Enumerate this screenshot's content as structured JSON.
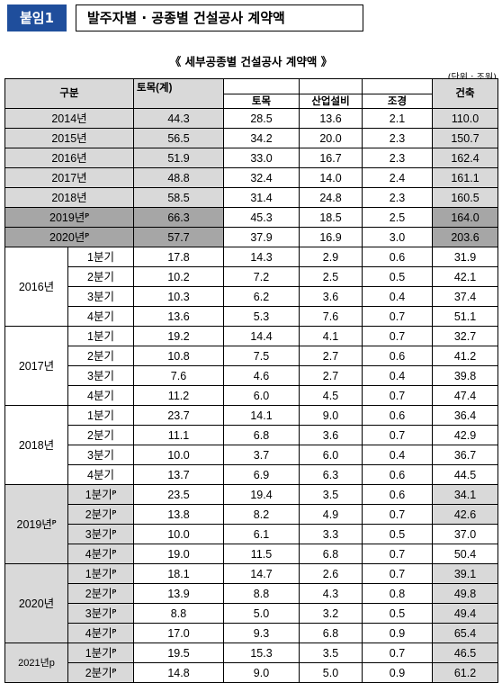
{
  "header": {
    "badge": "붙임1",
    "title": "발주자별 · 공종별 건설공사 계약액"
  },
  "subtitle": "《 세부공종별 건설공사 계약액 》",
  "unit": "(단위 : 조원)",
  "columns": {
    "category": "구분",
    "civil_total": "토목(계)",
    "civil": "토목",
    "industrial": "산업설비",
    "landscape": "조경",
    "building": "건축"
  },
  "annual_rows": [
    {
      "label": "2014년",
      "p": "",
      "total": "44.3",
      "civil": "28.5",
      "industrial": "13.6",
      "landscape": "2.1",
      "building": "110.0"
    },
    {
      "label": "2015년",
      "p": "",
      "total": "56.5",
      "civil": "34.2",
      "industrial": "20.0",
      "landscape": "2.3",
      "building": "150.7"
    },
    {
      "label": "2016년",
      "p": "",
      "total": "51.9",
      "civil": "33.0",
      "industrial": "16.7",
      "landscape": "2.3",
      "building": "162.4"
    },
    {
      "label": "2017년",
      "p": "",
      "total": "48.8",
      "civil": "32.4",
      "industrial": "14.0",
      "landscape": "2.4",
      "building": "161.1"
    },
    {
      "label": "2018년",
      "p": "",
      "total": "58.5",
      "civil": "31.4",
      "industrial": "24.8",
      "landscape": "2.3",
      "building": "160.5"
    },
    {
      "label": "2019년",
      "p": "P",
      "total": "66.3",
      "civil": "45.3",
      "industrial": "18.5",
      "landscape": "2.5",
      "building": "164.0"
    },
    {
      "label": "2020년",
      "p": "P",
      "total": "57.7",
      "civil": "37.9",
      "industrial": "16.9",
      "landscape": "3.0",
      "building": "203.6"
    }
  ],
  "quarter_groups": [
    {
      "year": "2016년",
      "p": "",
      "rows": [
        {
          "q": "1분기",
          "p": "",
          "total": "17.8",
          "civil": "14.3",
          "industrial": "2.9",
          "landscape": "0.6",
          "building": "31.9"
        },
        {
          "q": "2분기",
          "p": "",
          "total": "10.2",
          "civil": "7.2",
          "industrial": "2.5",
          "landscape": "0.5",
          "building": "42.1"
        },
        {
          "q": "3분기",
          "p": "",
          "total": "10.3",
          "civil": "6.2",
          "industrial": "3.6",
          "landscape": "0.4",
          "building": "37.4"
        },
        {
          "q": "4분기",
          "p": "",
          "total": "13.6",
          "civil": "5.3",
          "industrial": "7.6",
          "landscape": "0.7",
          "building": "51.1"
        }
      ]
    },
    {
      "year": "2017년",
      "p": "",
      "rows": [
        {
          "q": "1분기",
          "p": "",
          "total": "19.2",
          "civil": "14.4",
          "industrial": "4.1",
          "landscape": "0.7",
          "building": "32.7"
        },
        {
          "q": "2분기",
          "p": "",
          "total": "10.8",
          "civil": "7.5",
          "industrial": "2.7",
          "landscape": "0.6",
          "building": "41.2"
        },
        {
          "q": "3분기",
          "p": "",
          "total": "7.6",
          "civil": "4.6",
          "industrial": "2.7",
          "landscape": "0.4",
          "building": "39.8"
        },
        {
          "q": "4분기",
          "p": "",
          "total": "11.2",
          "civil": "6.0",
          "industrial": "4.5",
          "landscape": "0.7",
          "building": "47.4"
        }
      ]
    },
    {
      "year": "2018년",
      "p": "",
      "rows": [
        {
          "q": "1분기",
          "p": "",
          "total": "23.7",
          "civil": "14.1",
          "industrial": "9.0",
          "landscape": "0.6",
          "building": "36.4"
        },
        {
          "q": "2분기",
          "p": "",
          "total": "11.1",
          "civil": "6.8",
          "industrial": "3.6",
          "landscape": "0.7",
          "building": "42.9"
        },
        {
          "q": "3분기",
          "p": "",
          "total": "10.0",
          "civil": "3.7",
          "industrial": "6.0",
          "landscape": "0.4",
          "building": "36.7"
        },
        {
          "q": "4분기",
          "p": "",
          "total": "13.7",
          "civil": "6.9",
          "industrial": "6.3",
          "landscape": "0.6",
          "building": "44.5"
        }
      ]
    },
    {
      "year": "2019년",
      "p": "P",
      "rows": [
        {
          "q": "1분기",
          "p": "P",
          "total": "23.5",
          "civil": "19.4",
          "industrial": "3.5",
          "landscape": "0.6",
          "building": "34.1"
        },
        {
          "q": "2분기",
          "p": "P",
          "total": "13.8",
          "civil": "8.2",
          "industrial": "4.9",
          "landscape": "0.7",
          "building": "42.6"
        },
        {
          "q": "3분기",
          "p": "P",
          "total": "10.0",
          "civil": "6.1",
          "industrial": "3.3",
          "landscape": "0.5",
          "building": "37.0"
        },
        {
          "q": "4분기",
          "p": "P",
          "total": "19.0",
          "civil": "11.5",
          "industrial": "6.8",
          "landscape": "0.7",
          "building": "50.4"
        }
      ]
    },
    {
      "year": "2020년",
      "p": "",
      "rows": [
        {
          "q": "1분기",
          "p": "P",
          "total": "18.1",
          "civil": "14.7",
          "industrial": "2.6",
          "landscape": "0.7",
          "building": "39.1"
        },
        {
          "q": "2분기",
          "p": "P",
          "total": "13.9",
          "civil": "8.8",
          "industrial": "4.3",
          "landscape": "0.8",
          "building": "49.8"
        },
        {
          "q": "3분기",
          "p": "P",
          "total": "8.8",
          "civil": "5.0",
          "industrial": "3.2",
          "landscape": "0.5",
          "building": "49.4"
        },
        {
          "q": "4분기",
          "p": "P",
          "total": "17.0",
          "civil": "9.3",
          "industrial": "6.8",
          "landscape": "0.9",
          "building": "65.4"
        }
      ]
    },
    {
      "year": "2021년p",
      "p": "",
      "rows": [
        {
          "q": "1분기",
          "p": "P",
          "total": "19.5",
          "civil": "15.3",
          "industrial": "3.5",
          "landscape": "0.7",
          "building": "46.5"
        },
        {
          "q": "2분기",
          "p": "P",
          "total": "14.8",
          "civil": "9.0",
          "industrial": "5.0",
          "landscape": "0.9",
          "building": "61.2"
        }
      ]
    }
  ],
  "colors": {
    "badge_bg": "#1f4e9c",
    "header_grey": "#d9d9d9",
    "provisional_grey": "#a6a6a6"
  }
}
